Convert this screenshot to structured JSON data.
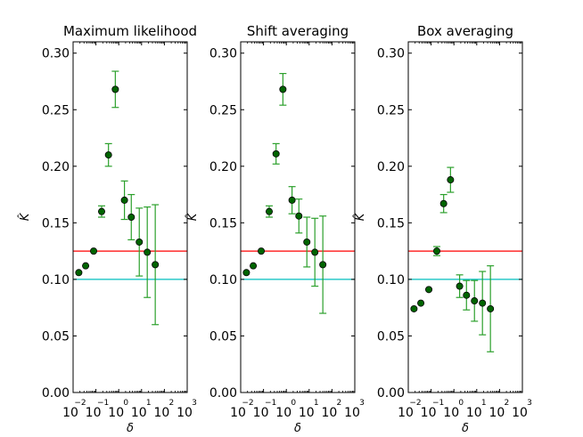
{
  "chart_data": [
    {
      "type": "scatter",
      "title": "Maximum likelihood",
      "xlabel": "δ",
      "ylabel": "K̂",
      "xscale": "log",
      "xlim": [
        -2,
        3
      ],
      "xtick_exponents": [
        -2,
        -1,
        0,
        1,
        2,
        3
      ],
      "ylim": [
        0,
        0.31
      ],
      "yticks": [
        "0.00",
        "0.05",
        "0.10",
        "0.15",
        "0.20",
        "0.25",
        "0.30"
      ],
      "reference_lines": [
        {
          "y": 0.125,
          "color": "#ff0000"
        },
        {
          "y": 0.1,
          "color": "#00bfbf"
        }
      ],
      "marker_color": "#006400",
      "errorbar_color": "#2ca02c",
      "points": [
        {
          "x": -1.75,
          "y": 0.106,
          "err": 0.0
        },
        {
          "x": -1.45,
          "y": 0.112,
          "err": 0.0
        },
        {
          "x": -1.1,
          "y": 0.125,
          "err": 0.0
        },
        {
          "x": -0.75,
          "y": 0.16,
          "err": 0.005
        },
        {
          "x": -0.45,
          "y": 0.21,
          "err": 0.01
        },
        {
          "x": -0.15,
          "y": 0.268,
          "err": 0.016
        },
        {
          "x": 0.25,
          "y": 0.17,
          "err": 0.017
        },
        {
          "x": 0.55,
          "y": 0.155,
          "err": 0.02
        },
        {
          "x": 0.9,
          "y": 0.133,
          "err": 0.03
        },
        {
          "x": 1.25,
          "y": 0.124,
          "err": 0.04
        },
        {
          "x": 1.6,
          "y": 0.113,
          "err": 0.053
        }
      ]
    },
    {
      "type": "scatter",
      "title": "Shift averaging",
      "xlabel": "δ",
      "ylabel": "K̂",
      "xscale": "log",
      "xlim": [
        -2,
        3
      ],
      "xtick_exponents": [
        -2,
        -1,
        0,
        1,
        2,
        3
      ],
      "ylim": [
        0,
        0.31
      ],
      "yticks": [
        "0.00",
        "0.05",
        "0.10",
        "0.15",
        "0.20",
        "0.25",
        "0.30"
      ],
      "reference_lines": [
        {
          "y": 0.125,
          "color": "#ff0000"
        },
        {
          "y": 0.1,
          "color": "#00bfbf"
        }
      ],
      "marker_color": "#006400",
      "errorbar_color": "#2ca02c",
      "points": [
        {
          "x": -1.75,
          "y": 0.106,
          "err": 0.0
        },
        {
          "x": -1.45,
          "y": 0.112,
          "err": 0.0
        },
        {
          "x": -1.1,
          "y": 0.125,
          "err": 0.0
        },
        {
          "x": -0.75,
          "y": 0.16,
          "err": 0.005
        },
        {
          "x": -0.45,
          "y": 0.211,
          "err": 0.009
        },
        {
          "x": -0.15,
          "y": 0.268,
          "err": 0.014
        },
        {
          "x": 0.25,
          "y": 0.17,
          "err": 0.012
        },
        {
          "x": 0.55,
          "y": 0.156,
          "err": 0.015
        },
        {
          "x": 0.9,
          "y": 0.133,
          "err": 0.022
        },
        {
          "x": 1.25,
          "y": 0.124,
          "err": 0.03
        },
        {
          "x": 1.6,
          "y": 0.113,
          "err": 0.043
        }
      ]
    },
    {
      "type": "scatter",
      "title": "Box averaging",
      "xlabel": "δ",
      "ylabel": "K̂",
      "xscale": "log",
      "xlim": [
        -2,
        3
      ],
      "xtick_exponents": [
        -2,
        -1,
        0,
        1,
        2,
        3
      ],
      "ylim": [
        0,
        0.31
      ],
      "yticks": [
        "0.00",
        "0.05",
        "0.10",
        "0.15",
        "0.20",
        "0.25",
        "0.30"
      ],
      "reference_lines": [
        {
          "y": 0.125,
          "color": "#ff0000"
        },
        {
          "y": 0.1,
          "color": "#00bfbf"
        }
      ],
      "marker_color": "#006400",
      "errorbar_color": "#2ca02c",
      "points": [
        {
          "x": -1.75,
          "y": 0.074,
          "err": 0.0
        },
        {
          "x": -1.45,
          "y": 0.079,
          "err": 0.0
        },
        {
          "x": -1.1,
          "y": 0.091,
          "err": 0.0
        },
        {
          "x": -0.75,
          "y": 0.125,
          "err": 0.004
        },
        {
          "x": -0.45,
          "y": 0.167,
          "err": 0.008
        },
        {
          "x": -0.15,
          "y": 0.188,
          "err": 0.011
        },
        {
          "x": 0.25,
          "y": 0.094,
          "err": 0.01
        },
        {
          "x": 0.55,
          "y": 0.086,
          "err": 0.013
        },
        {
          "x": 0.9,
          "y": 0.081,
          "err": 0.018
        },
        {
          "x": 1.25,
          "y": 0.079,
          "err": 0.028
        },
        {
          "x": 1.6,
          "y": 0.074,
          "err": 0.038
        }
      ]
    }
  ]
}
